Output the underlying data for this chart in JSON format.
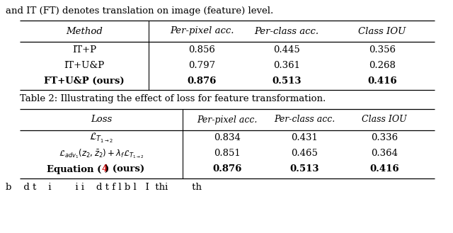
{
  "top_text": "and IT (FT) denotes translation on image (feature) level.",
  "bottom_text": "b    d t    i        i i    d t f l b l   I  thi        th",
  "table1_header": [
    "Method",
    "Per-pixel acc.",
    "Per-class acc.",
    "Class IOU"
  ],
  "table1_rows": [
    [
      "IT+P",
      "0.856",
      "0.445",
      "0.356"
    ],
    [
      "IT+U&P",
      "0.797",
      "0.361",
      "0.268"
    ],
    [
      "FT+U&P (ours)",
      "0.876",
      "0.513",
      "0.416"
    ]
  ],
  "table1_bold_row": 2,
  "table2_caption": "Table 2: Illustrating the effect of loss for feature transformation.",
  "table2_header": [
    "Loss",
    "Per-pixel acc.",
    "Per-class acc.",
    "Class IOU"
  ],
  "table2_rows": [
    [
      "L_T12",
      "0.834",
      "0.431",
      "0.336"
    ],
    [
      "L_adv",
      "0.851",
      "0.465",
      "0.364"
    ],
    [
      "Equation (4) (ours)",
      "0.876",
      "0.513",
      "0.416"
    ]
  ],
  "table2_bold_row": 2,
  "equation_color": "#cc0000",
  "bg_color": "#ffffff"
}
